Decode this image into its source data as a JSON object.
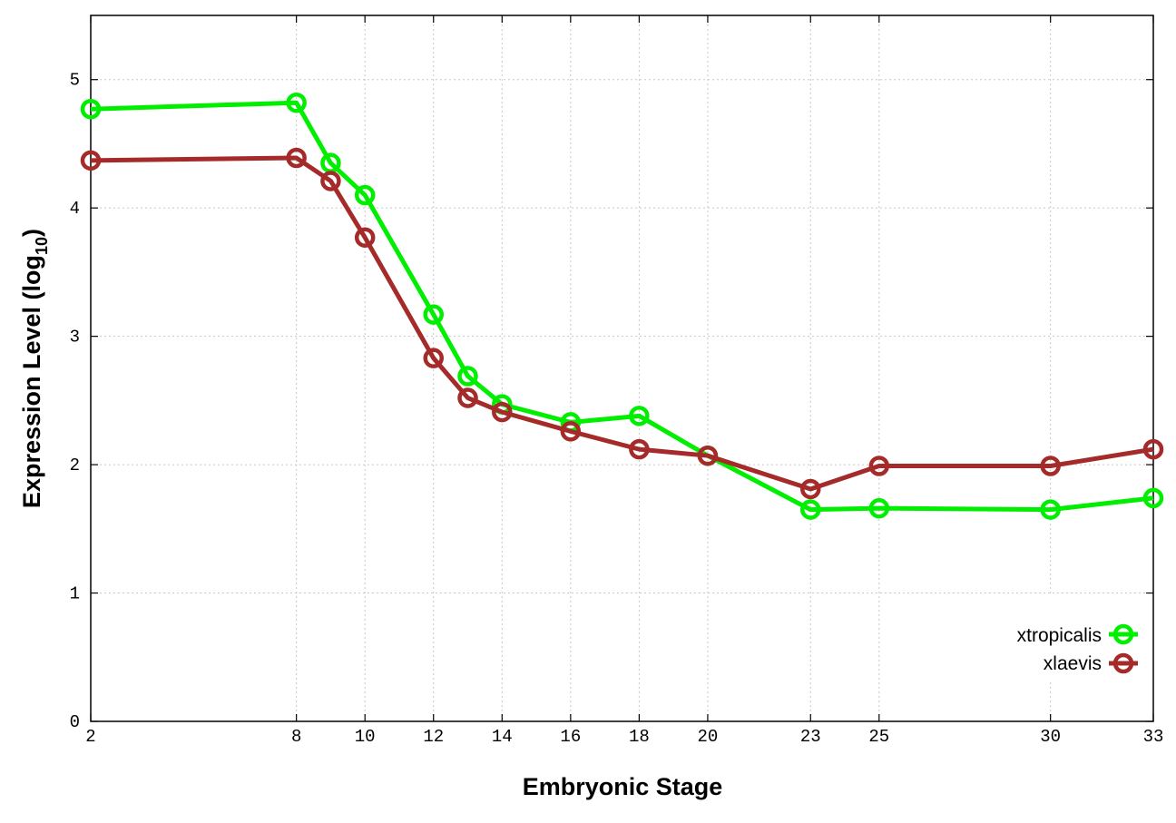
{
  "chart_data": {
    "type": "line",
    "xlabel": "Embryonic Stage",
    "ylabel": {
      "main": "Expression Level (log",
      "sub": "10",
      "close": ")"
    },
    "x": [
      2,
      8,
      9,
      10,
      12,
      13,
      14,
      16,
      18,
      20,
      23,
      25,
      30,
      33
    ],
    "x_ticks": [
      "2",
      "8",
      "10",
      "12",
      "14",
      "16",
      "18",
      "20",
      "23",
      "25",
      "30",
      "33"
    ],
    "y_ticks": [
      "0",
      "1",
      "2",
      "3",
      "4",
      "5"
    ],
    "ylim": [
      0,
      5.5
    ],
    "grid": true,
    "legend_position": "bottom-right",
    "series": [
      {
        "name": "xtropicalis",
        "color": "#00ee00",
        "values": [
          4.77,
          4.82,
          4.35,
          4.1,
          3.17,
          2.69,
          2.47,
          2.33,
          2.38,
          2.07,
          1.65,
          1.66,
          1.65,
          1.74
        ]
      },
      {
        "name": "xlaevis",
        "color": "#a52a2a",
        "values": [
          4.37,
          4.39,
          4.21,
          3.77,
          2.83,
          2.52,
          2.41,
          2.26,
          2.12,
          2.07,
          1.81,
          1.99,
          1.99,
          2.12
        ]
      }
    ]
  }
}
